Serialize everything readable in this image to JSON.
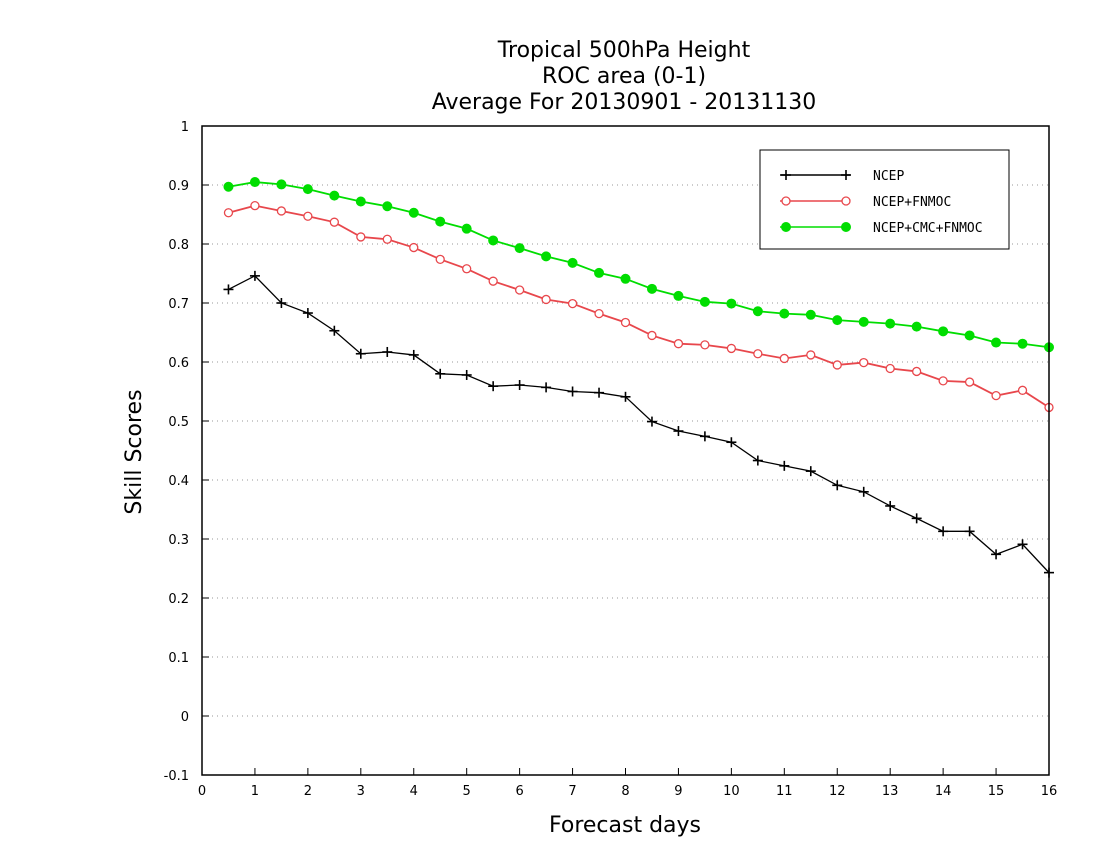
{
  "chart_data": {
    "type": "line",
    "title": [
      "Tropical 500hPa Height",
      "ROC area (0-1)",
      "Average For 20130901 - 20131130"
    ],
    "xlabel": "Forecast days",
    "ylabel": "Skill Scores",
    "xlim": [
      0,
      16
    ],
    "ylim": [
      -0.1,
      1
    ],
    "x_ticks": [
      0,
      1,
      2,
      3,
      4,
      5,
      6,
      7,
      8,
      9,
      10,
      11,
      12,
      13,
      14,
      15,
      16
    ],
    "y_ticks": [
      -0.1,
      0,
      0.1,
      0.2,
      0.3,
      0.4,
      0.5,
      0.6,
      0.7,
      0.8,
      0.9,
      1
    ],
    "y_tick_labels": [
      "-0.1",
      "0",
      "0.1",
      "0.2",
      "0.3",
      "0.4",
      "0.5",
      "0.6",
      "0.7",
      "0.8",
      "0.9",
      "1"
    ],
    "grid": "horizontal dotted",
    "legend_position": "top-right",
    "x": [
      0.5,
      1,
      1.5,
      2,
      2.5,
      3,
      3.5,
      4,
      4.5,
      5,
      5.5,
      6,
      6.5,
      7,
      7.5,
      8,
      8.5,
      9,
      9.5,
      10,
      10.5,
      11,
      11.5,
      12,
      12.5,
      13,
      13.5,
      14,
      14.5,
      15,
      15.5,
      16
    ],
    "series": [
      {
        "name": "NCEP",
        "color": "#000000",
        "marker": "plus",
        "values": [
          0.723,
          0.746,
          0.7,
          0.683,
          0.653,
          0.614,
          0.617,
          0.612,
          0.58,
          0.578,
          0.559,
          0.561,
          0.557,
          0.55,
          0.548,
          0.541,
          0.499,
          0.483,
          0.474,
          0.464,
          0.433,
          0.424,
          0.415,
          0.391,
          0.38,
          0.356,
          0.335,
          0.313,
          0.313,
          0.274,
          0.291,
          0.243
        ]
      },
      {
        "name": "NCEP+FNMOC",
        "color": "#e8474c",
        "marker": "open-circle",
        "values": [
          0.853,
          0.865,
          0.856,
          0.847,
          0.837,
          0.812,
          0.808,
          0.794,
          0.774,
          0.758,
          0.737,
          0.722,
          0.706,
          0.699,
          0.682,
          0.667,
          0.645,
          0.631,
          0.629,
          0.623,
          0.614,
          0.606,
          0.612,
          0.595,
          0.599,
          0.589,
          0.584,
          0.568,
          0.566,
          0.543,
          0.552,
          0.523
        ]
      },
      {
        "name": "NCEP+CMC+FNMOC",
        "color": "#00dd00",
        "marker": "filled-circle",
        "values": [
          0.897,
          0.905,
          0.901,
          0.893,
          0.882,
          0.872,
          0.864,
          0.853,
          0.838,
          0.826,
          0.806,
          0.793,
          0.779,
          0.768,
          0.751,
          0.741,
          0.724,
          0.712,
          0.702,
          0.699,
          0.686,
          0.682,
          0.68,
          0.671,
          0.668,
          0.665,
          0.66,
          0.652,
          0.645,
          0.633,
          0.631,
          0.625
        ]
      }
    ]
  }
}
